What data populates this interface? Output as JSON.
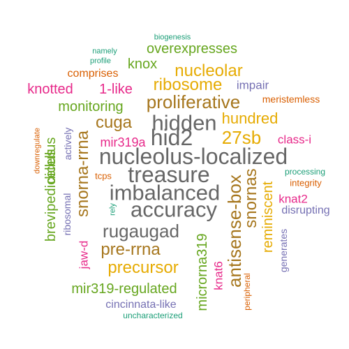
{
  "word_cloud": {
    "words": [
      {
        "text": "biogenesis",
        "color": "#1b9e77"
      },
      {
        "text": "namely",
        "color": "#1b9e77"
      },
      {
        "text": "overexpresses",
        "color": "#66a61e"
      },
      {
        "text": "profile",
        "color": "#1b9e77"
      },
      {
        "text": "knox",
        "color": "#66a61e"
      },
      {
        "text": "nucleolar",
        "color": "#e6ab02"
      },
      {
        "text": "comprises",
        "color": "#d95f02"
      },
      {
        "text": "impair",
        "color": "#7570b3"
      },
      {
        "text": "ribosome",
        "color": "#e6ab02"
      },
      {
        "text": "knotted",
        "color": "#e7298a"
      },
      {
        "text": "1-like",
        "color": "#e7298a"
      },
      {
        "text": "meristemless",
        "color": "#d95f02"
      },
      {
        "text": "proliferative",
        "color": "#a6761d"
      },
      {
        "text": "monitoring",
        "color": "#66a61e"
      },
      {
        "text": "hundred",
        "color": "#e6ab02"
      },
      {
        "text": "hidden",
        "color": "#666666"
      },
      {
        "text": "cuga",
        "color": "#a6761d"
      },
      {
        "text": "hid2",
        "color": "#666666"
      },
      {
        "text": "27sb",
        "color": "#e6ab02"
      },
      {
        "text": "class-i",
        "color": "#e7298a"
      },
      {
        "text": "mir319a",
        "color": "#e7298a"
      },
      {
        "text": "nucleolus-localized",
        "color": "#666666"
      },
      {
        "text": "treasure",
        "color": "#666666"
      },
      {
        "text": "tcps",
        "color": "#d95f02"
      },
      {
        "text": "processing",
        "color": "#1b9e77"
      },
      {
        "text": "integrity",
        "color": "#d95f02"
      },
      {
        "text": "imbalanced",
        "color": "#666666"
      },
      {
        "text": "knat2",
        "color": "#e7298a"
      },
      {
        "text": "accuracy",
        "color": "#666666"
      },
      {
        "text": "disrupting",
        "color": "#7570b3"
      },
      {
        "text": "rugaugad",
        "color": "#666666"
      },
      {
        "text": "pre-rrna",
        "color": "#a6761d"
      },
      {
        "text": "precursor",
        "color": "#e6ab02"
      },
      {
        "text": "mir319-regulated",
        "color": "#66a61e"
      },
      {
        "text": "cincinnata-like",
        "color": "#7570b3"
      },
      {
        "text": "uncharacterized",
        "color": "#1b9e77"
      },
      {
        "text": "downregulate",
        "color": "#d95f02"
      },
      {
        "text": "dicellus",
        "color": "#66a61e"
      },
      {
        "text": "actively",
        "color": "#7570b3"
      },
      {
        "text": "brevipedicellus",
        "color": "#66a61e"
      },
      {
        "text": "snorna-rrna",
        "color": "#a6761d"
      },
      {
        "text": "ribosomal",
        "color": "#7570b3"
      },
      {
        "text": "rely",
        "color": "#1b9e77"
      },
      {
        "text": "jaw-d",
        "color": "#e7298a"
      },
      {
        "text": "microrna319",
        "color": "#66a61e"
      },
      {
        "text": "knat6",
        "color": "#e7298a"
      },
      {
        "text": "antisense-box",
        "color": "#a6761d"
      },
      {
        "text": "peripheral",
        "color": "#d95f02"
      },
      {
        "text": "snornas",
        "color": "#a6761d"
      },
      {
        "text": "reminiscent",
        "color": "#e6ab02"
      },
      {
        "text": "generates",
        "color": "#7570b3"
      }
    ]
  }
}
